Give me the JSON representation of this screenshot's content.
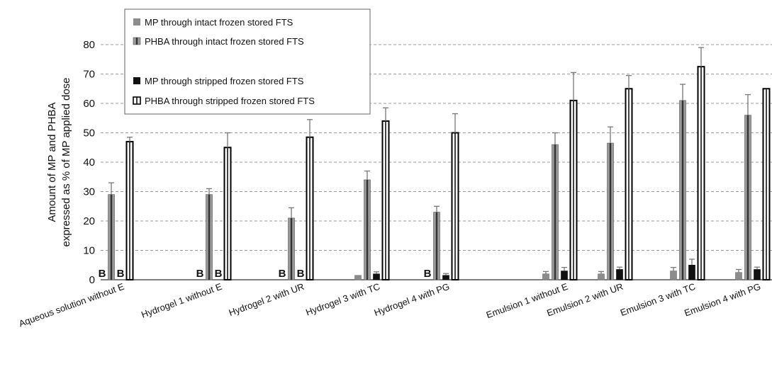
{
  "chart_data": {
    "type": "bar",
    "title": "",
    "xlabel": "",
    "ylabel": [
      "Amount  of  MP and PHBA",
      "expressed as % of MP applied dose"
    ],
    "ylim": [
      0,
      80
    ],
    "yticks": [
      0,
      10,
      20,
      30,
      40,
      50,
      60,
      70,
      80
    ],
    "grid": true,
    "legend_position": "top-left",
    "categories": [
      "Aqueous solution without E",
      "Hydrogel 1 without E",
      "Hydrogel 2 with UR",
      "Hydrogel 3 with TC",
      "Hydrogel 4 with PG",
      "Emulsion 1 without E",
      "Emulsion 2 with UR",
      "Emulsion 3 with TC",
      "Emulsion 4 with PG"
    ],
    "series": [
      {
        "name": "MP through intact frozen stored FTS",
        "color": "#8c8c8c",
        "values": [
          null,
          null,
          null,
          1.5,
          null,
          2,
          2,
          3,
          2.5
        ],
        "errors": [
          0,
          0,
          0,
          0,
          0,
          0.8,
          0.8,
          1.2,
          1.0
        ]
      },
      {
        "name": "PHBA through intact frozen stored FTS",
        "color": "#8c8c8c",
        "values": [
          29,
          29,
          21,
          34,
          23,
          46,
          46.5,
          61,
          56
        ],
        "errors": [
          4,
          2,
          3.5,
          3,
          2,
          4,
          5.5,
          5.5,
          7
        ]
      },
      {
        "name": "MP through stripped frozen stored FTS",
        "color": "#111111",
        "values": [
          null,
          null,
          null,
          2,
          1.5,
          3,
          3.5,
          5,
          3.5
        ],
        "errors": [
          0,
          0,
          0,
          0.7,
          0.6,
          1.2,
          0.8,
          2,
          0.8
        ]
      },
      {
        "name": "PHBA through stripped frozen stored FTS",
        "color": "#ffffff",
        "values": [
          47,
          45,
          48.5,
          54,
          50,
          61,
          65,
          72.5,
          65
        ],
        "errors": [
          1.5,
          5,
          6,
          4.5,
          6.5,
          9.5,
          4.5,
          6.5,
          0
        ]
      }
    ],
    "annotations": [
      {
        "category": 0,
        "series": 0,
        "text": "B"
      },
      {
        "category": 0,
        "series": 2,
        "text": "B"
      },
      {
        "category": 1,
        "series": 0,
        "text": "B"
      },
      {
        "category": 1,
        "series": 2,
        "text": "B"
      },
      {
        "category": 2,
        "series": 0,
        "text": "B"
      },
      {
        "category": 2,
        "series": 2,
        "text": "B"
      },
      {
        "category": 4,
        "series": 0,
        "text": "B"
      }
    ]
  }
}
